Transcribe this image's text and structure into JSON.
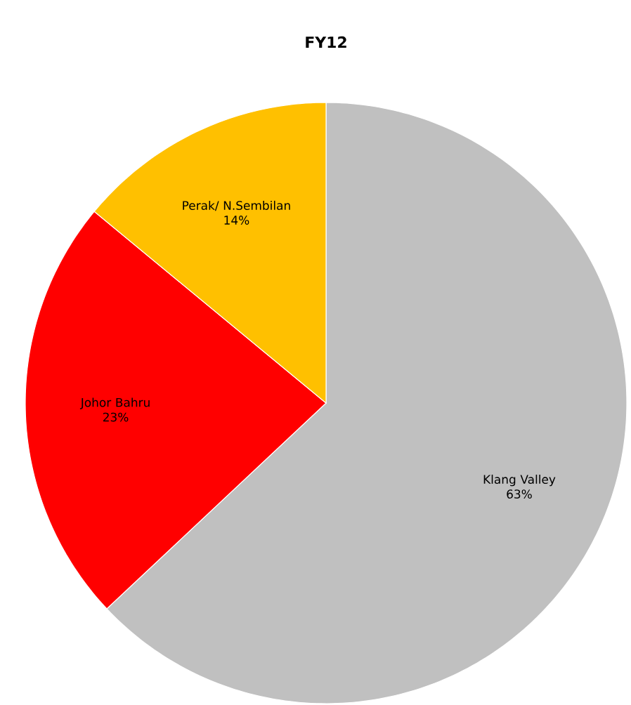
{
  "chart_data": {
    "type": "pie",
    "title": "FY12",
    "categories": [
      "Klang Valley",
      "Johor Bahru",
      "Perak/ N.Sembilan"
    ],
    "values": [
      63,
      23,
      14
    ],
    "colors": [
      "#c0c0c0",
      "#ff0000",
      "#ffc000"
    ],
    "value_labels": [
      "63%",
      "23%",
      "14%"
    ]
  }
}
